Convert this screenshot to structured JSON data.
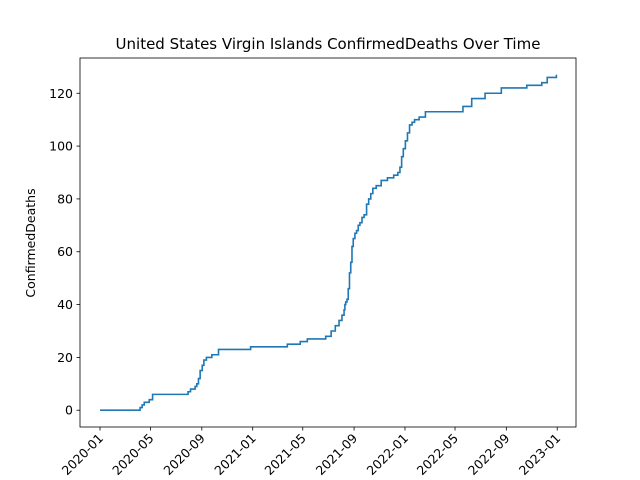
{
  "chart_data": {
    "type": "line",
    "title": "United States Virgin Islands  ConfirmedDeaths Over Time",
    "xlabel": "",
    "ylabel": "ConfirmedDeaths",
    "xlim": [
      "2019-11-14",
      "2023-02-15"
    ],
    "ylim": [
      -6.35,
      133.35
    ],
    "grid": false,
    "line_color": "#1f77b4",
    "x_ticks": [
      {
        "date": "2020-01-01",
        "label": "2020-01"
      },
      {
        "date": "2020-05-01",
        "label": "2020-05"
      },
      {
        "date": "2020-09-01",
        "label": "2020-09"
      },
      {
        "date": "2021-01-01",
        "label": "2021-01"
      },
      {
        "date": "2021-05-01",
        "label": "2021-05"
      },
      {
        "date": "2021-09-01",
        "label": "2021-09"
      },
      {
        "date": "2022-01-01",
        "label": "2022-01"
      },
      {
        "date": "2022-05-01",
        "label": "2022-05"
      },
      {
        "date": "2022-09-01",
        "label": "2022-09"
      },
      {
        "date": "2023-01-01",
        "label": "2023-01"
      }
    ],
    "y_ticks": [
      0,
      20,
      40,
      60,
      80,
      100,
      120
    ],
    "series": [
      {
        "x": [
          "2020-01-01",
          "2020-04-01",
          "2020-04-06",
          "2020-04-11",
          "2020-04-16",
          "2020-04-28",
          "2020-05-06",
          "2020-07-25",
          "2020-07-30",
          "2020-08-05",
          "2020-08-16",
          "2020-08-20",
          "2020-08-24",
          "2020-08-28",
          "2020-09-02",
          "2020-09-06",
          "2020-09-12",
          "2020-09-25",
          "2020-10-11",
          "2020-10-25",
          "2020-12-27",
          "2021-03-25",
          "2021-04-25",
          "2021-05-12",
          "2021-06-08",
          "2021-06-25",
          "2021-07-08",
          "2021-07-12",
          "2021-07-18",
          "2021-07-22",
          "2021-07-27",
          "2021-08-03",
          "2021-08-08",
          "2021-08-10",
          "2021-08-12",
          "2021-08-15",
          "2021-08-18",
          "2021-08-21",
          "2021-08-24",
          "2021-08-27",
          "2021-08-30",
          "2021-09-03",
          "2021-09-07",
          "2021-09-11",
          "2021-09-15",
          "2021-09-20",
          "2021-09-25",
          "2021-10-01",
          "2021-10-06",
          "2021-10-11",
          "2021-10-16",
          "2021-10-24",
          "2021-11-05",
          "2021-11-20",
          "2021-12-05",
          "2021-12-15",
          "2021-12-20",
          "2021-12-24",
          "2021-12-28",
          "2022-01-02",
          "2022-01-07",
          "2022-01-12",
          "2022-01-18",
          "2022-01-24",
          "2022-02-04",
          "2022-02-19",
          "2022-04-01",
          "2022-05-20",
          "2022-06-10",
          "2022-06-25",
          "2022-07-12",
          "2022-08-20",
          "2022-10-20",
          "2022-11-25",
          "2022-12-08",
          "2022-12-15",
          "2022-12-30"
        ],
        "values": [
          0,
          0,
          1,
          2,
          3,
          4,
          6,
          6,
          7,
          8,
          9,
          10,
          12,
          15,
          17,
          19,
          20,
          21,
          23,
          23,
          24,
          25,
          26,
          27,
          27,
          28,
          30,
          30,
          32,
          32,
          34,
          36,
          38,
          40,
          41,
          42,
          46,
          52,
          56,
          62,
          65,
          67,
          68,
          70,
          71,
          73,
          74,
          78,
          80,
          82,
          84,
          85,
          87,
          88,
          89,
          90,
          92,
          96,
          99,
          102,
          105,
          108,
          109,
          110,
          111,
          113,
          113,
          115,
          118,
          118,
          120,
          122,
          123,
          124,
          126,
          126,
          127
        ]
      }
    ]
  }
}
